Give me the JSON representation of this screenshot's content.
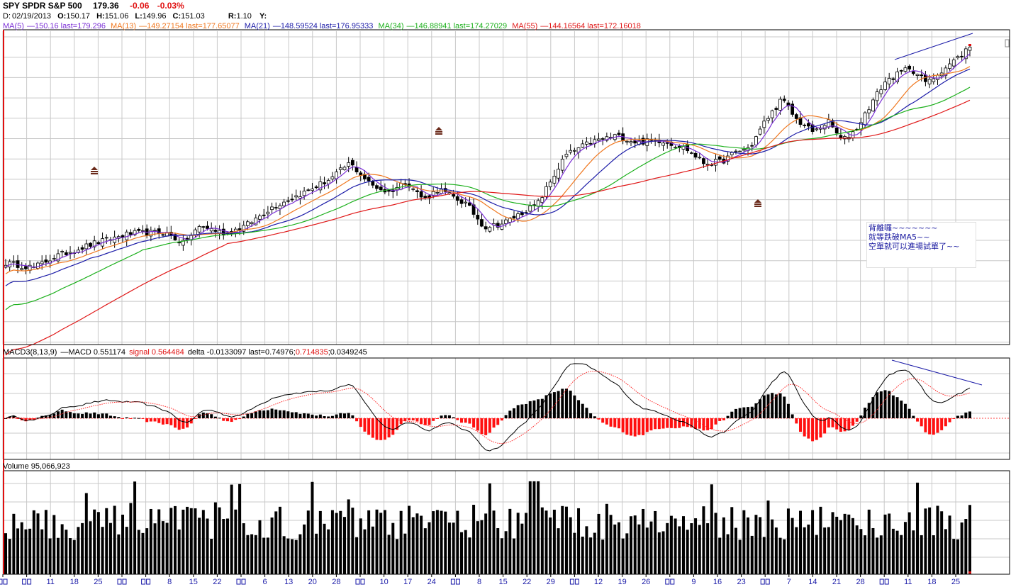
{
  "header": {
    "symbol": "SPY SPDR S&P 500",
    "price": "179.36",
    "change": "-0.06",
    "change_pct": "-0.03%",
    "date_label": "D:",
    "date": "02/19/2013",
    "open_label": "O:",
    "open": "150.17",
    "high_label": "H:",
    "high": "151.06",
    "low_label": "L:",
    "low": "149.96",
    "close_label": "C:",
    "close": "151.03",
    "r_label": "R:",
    "r_value": "1.10",
    "y_label": "Y:"
  },
  "ma_legend": [
    {
      "name": "MA(5)",
      "text": "—150.16 last=179.296",
      "color": "#7b2fd6"
    },
    {
      "name": "MA(13)",
      "text": "—149.27154 last=177.65077",
      "color": "#f07820"
    },
    {
      "name": "MA(21)",
      "text": "—148.59524 last=176.95333",
      "color": "#1c1ca8"
    },
    {
      "name": "MA(34)",
      "text": "—146.88941 last=174.27029",
      "color": "#1cb01c"
    },
    {
      "name": "MA(55)",
      "text": "—144.16564 last=172.16018",
      "color": "#e01818"
    }
  ],
  "macd_legend": {
    "name": "MACD3(8,13,9)",
    "macd": "—MACD 0.551174",
    "signal": "signal 0.564484",
    "delta": "delta -0.0133097 last=0.74976;",
    "last_signal": "0.714835",
    "last_delta": ";0.0349245"
  },
  "volume_legend": {
    "text": "Volume 95,066,923"
  },
  "annotation": {
    "lines": [
      "背離囉~~~~~~~",
      "就等跌破MA5~~",
      "空單就可以進場試單了~~"
    ]
  },
  "x_ticks": [
    "",
    "",
    "11",
    "18",
    "25",
    "",
    "",
    "8",
    "15",
    "22",
    "",
    "6",
    "13",
    "20",
    "28",
    "",
    "10",
    "17",
    "24",
    "",
    "8",
    "15",
    "22",
    "29",
    "",
    "12",
    "19",
    "26",
    "",
    "9",
    "16",
    "23",
    "",
    "7",
    "14",
    "21",
    "28",
    "",
    "11",
    "18",
    "25"
  ],
  "colors": {
    "up_candle": "#ffffff",
    "down_candle": "#000000",
    "macd_positive": "#000000",
    "macd_negative": "#ff1010",
    "macd_line": "#000000",
    "signal_line": "#ff2020",
    "grid": "#c8c8c8",
    "tick_text": "#1a1aa8",
    "trendline": "#1c1ca8",
    "marker": "#6a2a1a"
  },
  "chart_data": {
    "type": "candlestick",
    "note": "Daily SPY price with moving averages, MACD histogram and volume",
    "price_range": [
      138,
      186
    ],
    "points_count": 240
  }
}
